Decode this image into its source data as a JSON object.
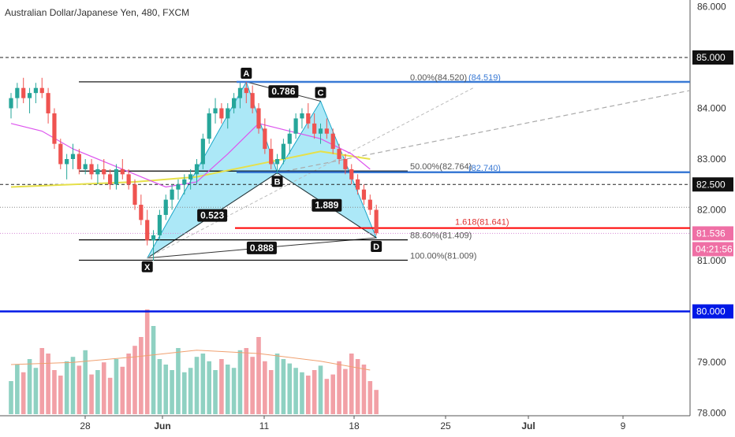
{
  "chart_title": "Australian Dollar/Japanese Yen, 480, FXCM",
  "colors": {
    "up": "#26a69a",
    "down": "#ef5350",
    "up_volume": "#8fd1c2",
    "down_volume": "#f2a0a6",
    "pattern_fill": "#7fdcf2",
    "fib_blue": "#3a7ad5",
    "target_red": "#ff0000",
    "support_blue": "#0018e6",
    "ma_yellow": "#e6e04a",
    "ma_violet": "#dd55ee",
    "volume_ma": "#f0a070"
  },
  "chart_data": {
    "type": "candlestick",
    "title": "Australian Dollar/Japanese Yen, 480, FXCM",
    "ylim": [
      78.0,
      86.0
    ],
    "y_ticks": [
      "86.000",
      "84.000",
      "83.000",
      "82.000",
      "81.000",
      "79.000",
      "78.000"
    ],
    "x_ticks": [
      "28",
      "Jun",
      "11",
      "18",
      "25",
      "Jul",
      "9"
    ],
    "price_tags": [
      {
        "value": 85.0,
        "label": "85.000",
        "style": "dark"
      },
      {
        "value": 82.5,
        "label": "82.500",
        "style": "dark"
      },
      {
        "value": 81.536,
        "label": "81.536",
        "style": "pink"
      },
      {
        "value": 80.0,
        "label": "80.000",
        "style": "blue"
      }
    ],
    "countdown": "04:21:56",
    "candles": [
      [
        84.0,
        84.3,
        83.8,
        84.2
      ],
      [
        84.2,
        84.5,
        84.0,
        84.4
      ],
      [
        84.4,
        84.6,
        84.1,
        84.2
      ],
      [
        84.2,
        84.4,
        83.9,
        84.3
      ],
      [
        84.3,
        84.5,
        84.1,
        84.4
      ],
      [
        84.4,
        84.6,
        84.2,
        84.3
      ],
      [
        84.3,
        84.4,
        83.7,
        83.9
      ],
      [
        83.9,
        84.0,
        83.2,
        83.3
      ],
      [
        83.3,
        83.4,
        82.8,
        82.9
      ],
      [
        82.9,
        83.1,
        82.6,
        83.0
      ],
      [
        83.0,
        83.3,
        82.8,
        83.1
      ],
      [
        83.1,
        83.2,
        82.7,
        82.8
      ],
      [
        82.8,
        83.0,
        82.7,
        82.9
      ],
      [
        82.9,
        83.0,
        82.6,
        82.7
      ],
      [
        82.7,
        82.9,
        82.5,
        82.8
      ],
      [
        82.8,
        83.0,
        82.6,
        82.7
      ],
      [
        82.7,
        82.8,
        82.4,
        82.5
      ],
      [
        82.5,
        82.9,
        82.4,
        82.8
      ],
      [
        82.8,
        83.0,
        82.6,
        82.7
      ],
      [
        82.7,
        82.8,
        82.4,
        82.5
      ],
      [
        82.5,
        82.6,
        82.0,
        82.1
      ],
      [
        82.1,
        82.3,
        81.7,
        81.8
      ],
      [
        81.8,
        82.0,
        81.3,
        81.4
      ],
      [
        81.4,
        81.6,
        81.0,
        81.5
      ],
      [
        81.5,
        82.0,
        81.4,
        81.9
      ],
      [
        81.9,
        82.3,
        81.8,
        82.2
      ],
      [
        82.2,
        82.5,
        82.0,
        82.4
      ],
      [
        82.4,
        82.6,
        82.2,
        82.5
      ],
      [
        82.5,
        82.7,
        82.3,
        82.6
      ],
      [
        82.6,
        82.8,
        82.4,
        82.7
      ],
      [
        82.7,
        83.0,
        82.5,
        82.9
      ],
      [
        82.9,
        83.5,
        82.8,
        83.4
      ],
      [
        83.4,
        84.0,
        83.3,
        83.9
      ],
      [
        83.9,
        84.2,
        83.7,
        84.0
      ],
      [
        84.0,
        84.1,
        83.7,
        83.8
      ],
      [
        83.8,
        84.1,
        83.6,
        84.0
      ],
      [
        84.0,
        84.3,
        83.9,
        84.2
      ],
      [
        84.2,
        84.5,
        84.0,
        84.4
      ],
      [
        84.4,
        84.52,
        84.1,
        84.3
      ],
      [
        84.3,
        84.45,
        83.9,
        84.0
      ],
      [
        84.0,
        84.1,
        83.5,
        83.6
      ],
      [
        83.6,
        83.8,
        83.1,
        83.2
      ],
      [
        83.2,
        83.4,
        82.8,
        82.9
      ],
      [
        82.9,
        83.1,
        82.7,
        83.0
      ],
      [
        83.0,
        83.4,
        82.9,
        83.3
      ],
      [
        83.3,
        83.6,
        83.1,
        83.5
      ],
      [
        83.5,
        83.9,
        83.4,
        83.8
      ],
      [
        83.8,
        84.0,
        83.6,
        83.9
      ],
      [
        83.9,
        84.1,
        83.6,
        83.7
      ],
      [
        83.7,
        83.9,
        83.4,
        83.5
      ],
      [
        83.5,
        83.7,
        83.3,
        83.6
      ],
      [
        83.6,
        83.8,
        83.4,
        83.5
      ],
      [
        83.5,
        83.6,
        83.1,
        83.2
      ],
      [
        83.2,
        83.3,
        82.9,
        83.0
      ],
      [
        83.0,
        83.1,
        82.7,
        82.8
      ],
      [
        82.8,
        82.9,
        82.5,
        82.6
      ],
      [
        82.6,
        82.7,
        82.3,
        82.4
      ],
      [
        82.4,
        82.5,
        82.1,
        82.2
      ],
      [
        82.2,
        82.3,
        81.9,
        82.0
      ],
      [
        82.0,
        82.1,
        81.5,
        81.54
      ]
    ],
    "volumes": [
      0.3,
      0.45,
      0.38,
      0.5,
      0.42,
      0.6,
      0.55,
      0.4,
      0.35,
      0.48,
      0.52,
      0.44,
      0.58,
      0.36,
      0.4,
      0.47,
      0.33,
      0.5,
      0.43,
      0.55,
      0.62,
      0.7,
      0.95,
      0.8,
      0.5,
      0.45,
      0.4,
      0.6,
      0.38,
      0.42,
      0.52,
      0.55,
      0.48,
      0.4,
      0.5,
      0.45,
      0.42,
      0.58,
      0.6,
      0.52,
      0.7,
      0.48,
      0.4,
      0.55,
      0.5,
      0.46,
      0.42,
      0.38,
      0.35,
      0.4,
      0.44,
      0.32,
      0.36,
      0.48,
      0.41,
      0.55,
      0.5,
      0.45,
      0.3,
      0.22
    ],
    "ma_yellow": [
      [
        0,
        82.45
      ],
      [
        10,
        82.5
      ],
      [
        20,
        82.55
      ],
      [
        30,
        82.65
      ],
      [
        40,
        82.9
      ],
      [
        50,
        83.15
      ],
      [
        58,
        83.0
      ]
    ],
    "ma_violet": [
      [
        0,
        83.7
      ],
      [
        5,
        83.55
      ],
      [
        10,
        83.2
      ],
      [
        15,
        82.95
      ],
      [
        20,
        82.7
      ],
      [
        25,
        82.45
      ],
      [
        30,
        82.55
      ],
      [
        35,
        83.1
      ],
      [
        40,
        83.7
      ],
      [
        45,
        83.55
      ],
      [
        50,
        83.4
      ],
      [
        55,
        83.1
      ],
      [
        58,
        82.8
      ]
    ],
    "volume_ma": [
      [
        0,
        0.45
      ],
      [
        10,
        0.47
      ],
      [
        20,
        0.52
      ],
      [
        30,
        0.58
      ],
      [
        40,
        0.55
      ],
      [
        50,
        0.48
      ],
      [
        58,
        0.4
      ]
    ],
    "pattern_points": [
      {
        "label": "X",
        "bar": 22,
        "price": 81.05
      },
      {
        "label": "A",
        "bar": 38,
        "price": 84.52
      },
      {
        "label": "B",
        "bar": 43,
        "price": 82.73
      },
      {
        "label": "C",
        "bar": 50,
        "price": 84.14
      },
      {
        "label": "D",
        "bar": 59,
        "price": 81.45
      }
    ],
    "ratios": [
      {
        "label": "0.786"
      },
      {
        "label": "0.523"
      },
      {
        "label": "1.889"
      },
      {
        "label": "0.888"
      }
    ],
    "fib_levels": [
      {
        "label": "0.00%(84.520)",
        "value": 84.52
      },
      {
        "label": "50.00%(82.764)",
        "value": 82.764
      },
      {
        "label": "88.60%(81.409)",
        "value": 81.409
      },
      {
        "label": "100.00%(81.009)",
        "value": 81.009
      }
    ],
    "fib_blue_labels": [
      {
        "label": "(84.519)",
        "value": 84.519
      },
      {
        "label": "(82.740)",
        "value": 82.74
      }
    ],
    "target_level": {
      "label": "1.618(81.641)",
      "value": 81.641
    },
    "horizontal_dashed": [
      85.0,
      82.5
    ],
    "support_line": 80.0
  }
}
